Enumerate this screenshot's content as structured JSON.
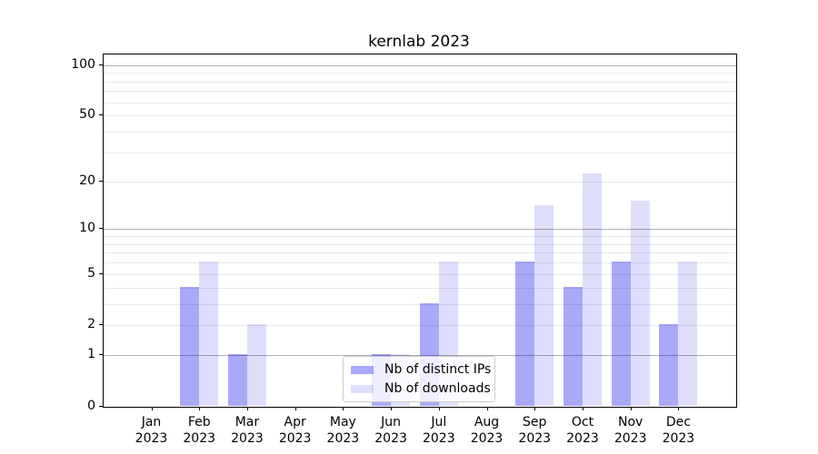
{
  "chart_data": {
    "type": "bar",
    "title": "kernlab 2023",
    "categories": [
      "Jan",
      "Feb",
      "Mar",
      "Apr",
      "May",
      "Jun",
      "Jul",
      "Aug",
      "Sep",
      "Oct",
      "Nov",
      "Dec"
    ],
    "category_year": "2023",
    "series": [
      {
        "name": "Nb of distinct IPs",
        "values": [
          0,
          4,
          1,
          0,
          0,
          1,
          3,
          0,
          6,
          4,
          6,
          2
        ]
      },
      {
        "name": "Nb of downloads",
        "values": [
          0,
          6,
          2,
          0,
          0,
          1,
          6,
          0,
          14,
          22,
          15,
          6
        ]
      }
    ],
    "yscale": "log1p",
    "ylim": [
      0,
      116
    ],
    "yticks": [
      0,
      1,
      2,
      5,
      10,
      20,
      50,
      100
    ],
    "gridlines": {
      "major": [
        1,
        10,
        100
      ],
      "minor": [
        2,
        3,
        4,
        5,
        6,
        7,
        8,
        9,
        20,
        30,
        40,
        50,
        60,
        70,
        80,
        90
      ]
    },
    "grid": true,
    "legend_position": "lower center"
  },
  "legend": {
    "entries": [
      {
        "label": "Nb of distinct IPs",
        "swatch": "bar-ips-swatch"
      },
      {
        "label": "Nb of downloads",
        "swatch": "bar-downloads-swatch"
      }
    ]
  },
  "colors": {
    "bar_base": "#0a0aeb",
    "bar_ips_alpha": 0.35,
    "bar_downloads_alpha": 0.135,
    "major_grid": "#b0b0b0",
    "minor_grid": "#e8e8e8",
    "axis": "#000000",
    "legend_border": "#cccccc"
  }
}
